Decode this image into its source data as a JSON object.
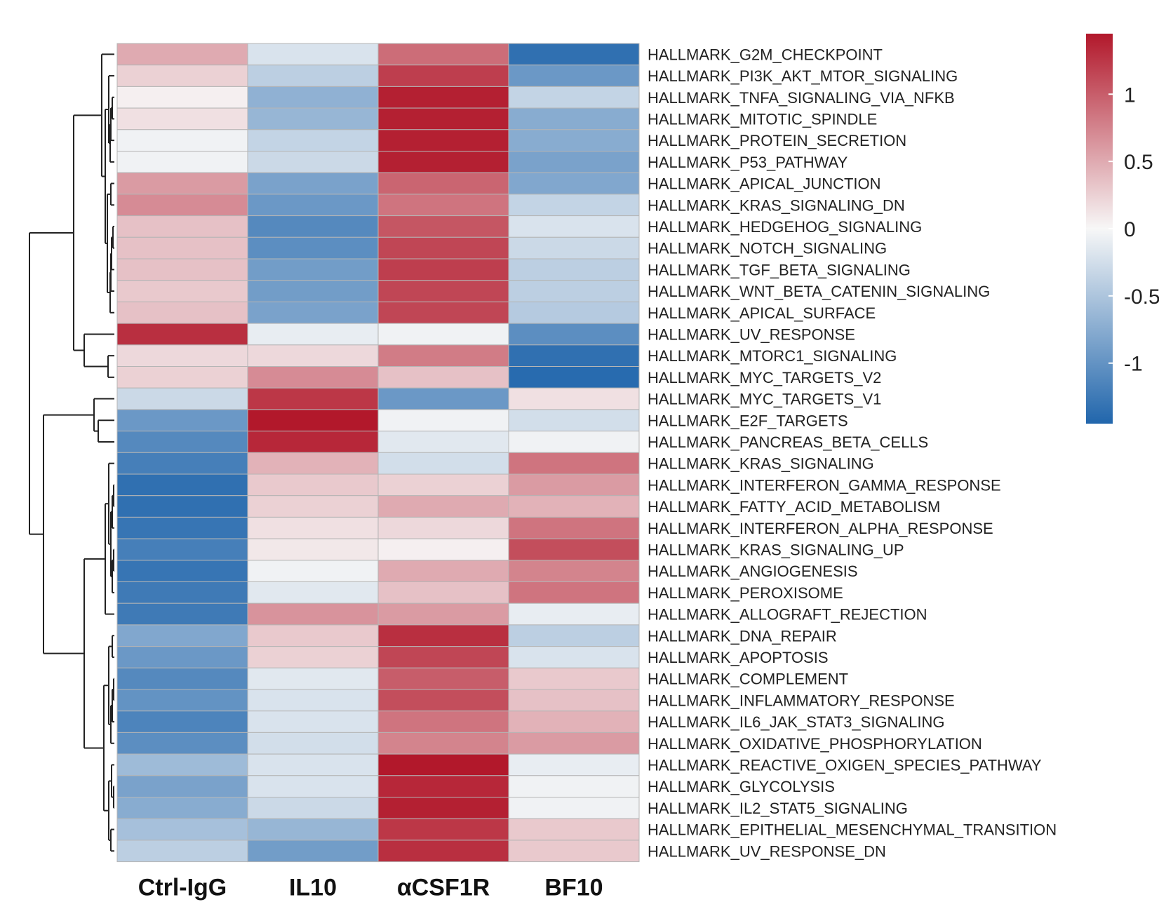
{
  "chart_data": {
    "type": "heatmap",
    "title": "",
    "columns": [
      "Ctrl-IgG",
      "IL10",
      "αCSF1R",
      "BF10"
    ],
    "rows": [
      {
        "name": "HALLMARK_G2M_CHECKPOINT",
        "values": [
          0.5,
          -0.2,
          0.9,
          -1.35
        ]
      },
      {
        "name": "HALLMARK_PI3K_AKT_MTOR_SIGNALING",
        "values": [
          0.25,
          -0.4,
          1.2,
          -0.95
        ]
      },
      {
        "name": "HALLMARK_TNFA_SIGNALING_VIA_NFKB",
        "values": [
          0.05,
          -0.7,
          1.4,
          -0.35
        ]
      },
      {
        "name": "HALLMARK_MITOTIC_SPINDLE",
        "values": [
          0.15,
          -0.65,
          1.4,
          -0.75
        ]
      },
      {
        "name": "HALLMARK_PROTEIN_SECRETION",
        "values": [
          -0.05,
          -0.35,
          1.4,
          -0.75
        ]
      },
      {
        "name": "HALLMARK_P53_PATHWAY",
        "values": [
          -0.05,
          -0.3,
          1.4,
          -0.85
        ]
      },
      {
        "name": "HALLMARK_APICAL_JUNCTION",
        "values": [
          0.6,
          -0.85,
          0.95,
          -0.8
        ]
      },
      {
        "name": "HALLMARK_KRAS_SIGNALING_DN",
        "values": [
          0.7,
          -0.95,
          0.85,
          -0.35
        ]
      },
      {
        "name": "HALLMARK_HEDGEHOG_SIGNALING",
        "values": [
          0.35,
          -1.1,
          1.05,
          -0.2
        ]
      },
      {
        "name": "HALLMARK_NOTCH_SIGNALING",
        "values": [
          0.35,
          -1.05,
          1.15,
          -0.3
        ]
      },
      {
        "name": "HALLMARK_TGF_BETA_SIGNALING",
        "values": [
          0.35,
          -0.9,
          1.2,
          -0.4
        ]
      },
      {
        "name": "HALLMARK_WNT_BETA_CATENIN_SIGNALING",
        "values": [
          0.3,
          -0.9,
          1.15,
          -0.4
        ]
      },
      {
        "name": "HALLMARK_APICAL_SURFACE",
        "values": [
          0.35,
          -0.85,
          1.15,
          -0.45
        ]
      },
      {
        "name": "HALLMARK_UV_RESPONSE",
        "values": [
          1.3,
          -0.1,
          -0.05,
          -1.05
        ]
      },
      {
        "name": "HALLMARK_MTORC1_SIGNALING",
        "values": [
          0.2,
          0.2,
          0.8,
          -1.35
        ]
      },
      {
        "name": "HALLMARK_MYC_TARGETS_V2",
        "values": [
          0.25,
          0.7,
          0.35,
          -1.4
        ]
      },
      {
        "name": "HALLMARK_MYC_TARGETS_V1",
        "values": [
          -0.3,
          1.25,
          -0.95,
          0.15
        ]
      },
      {
        "name": "HALLMARK_E2F_TARGETS",
        "values": [
          -0.95,
          1.45,
          -0.05,
          -0.25
        ]
      },
      {
        "name": "HALLMARK_PANCREAS_BETA_CELLS",
        "values": [
          -1.1,
          1.35,
          -0.15,
          -0.05
        ]
      },
      {
        "name": "HALLMARK_KRAS_SIGNALING",
        "values": [
          -1.2,
          0.45,
          -0.25,
          0.85
        ]
      },
      {
        "name": "HALLMARK_INTERFERON_GAMMA_RESPONSE",
        "values": [
          -1.35,
          0.3,
          0.25,
          0.6
        ]
      },
      {
        "name": "HALLMARK_FATTY_ACID_METABOLISM",
        "values": [
          -1.35,
          0.25,
          0.5,
          0.45
        ]
      },
      {
        "name": "HALLMARK_INTERFERON_ALPHA_RESPONSE",
        "values": [
          -1.3,
          0.15,
          0.2,
          0.85
        ]
      },
      {
        "name": "HALLMARK_KRAS_SIGNALING_UP",
        "values": [
          -1.2,
          0.1,
          0.05,
          1.1
        ]
      },
      {
        "name": "HALLMARK_ANGIOGENESIS",
        "values": [
          -1.3,
          -0.05,
          0.5,
          0.75
        ]
      },
      {
        "name": "HALLMARK_PEROXISOME",
        "values": [
          -1.25,
          -0.15,
          0.35,
          0.85
        ]
      },
      {
        "name": "HALLMARK_ALLOGRAFT_REJECTION",
        "values": [
          -1.25,
          0.65,
          0.6,
          -0.1
        ]
      },
      {
        "name": "HALLMARK_DNA_REPAIR",
        "values": [
          -0.8,
          0.3,
          1.3,
          -0.4
        ]
      },
      {
        "name": "HALLMARK_APOPTOSIS",
        "values": [
          -0.95,
          0.25,
          1.15,
          -0.2
        ]
      },
      {
        "name": "HALLMARK_COMPLEMENT",
        "values": [
          -1.1,
          -0.15,
          1.0,
          0.3
        ]
      },
      {
        "name": "HALLMARK_INFLAMMATORY_RESPONSE",
        "values": [
          -1.0,
          -0.2,
          1.1,
          0.35
        ]
      },
      {
        "name": "HALLMARK_IL6_JAK_STAT3_SIGNALING",
        "values": [
          -1.15,
          -0.2,
          0.85,
          0.45
        ]
      },
      {
        "name": "HALLMARK_OXIDATIVE_PHOSPHORYLATION",
        "values": [
          -1.05,
          -0.25,
          0.75,
          0.6
        ]
      },
      {
        "name": "HALLMARK_REACTIVE_OXIGEN_SPECIES_PATHWAY",
        "values": [
          -0.6,
          -0.2,
          1.45,
          -0.1
        ]
      },
      {
        "name": "HALLMARK_GLYCOLYSIS",
        "values": [
          -0.85,
          -0.2,
          1.35,
          -0.05
        ]
      },
      {
        "name": "HALLMARK_IL2_STAT5_SIGNALING",
        "values": [
          -0.75,
          -0.3,
          1.4,
          -0.05
        ]
      },
      {
        "name": "HALLMARK_EPITHELIAL_MESENCHYMAL_TRANSITION",
        "values": [
          -0.55,
          -0.65,
          1.25,
          0.3
        ]
      },
      {
        "name": "HALLMARK_UV_RESPONSE_DN",
        "values": [
          -0.4,
          -0.9,
          1.3,
          0.3
        ]
      }
    ],
    "color_scale": {
      "min": -1.45,
      "max": 1.45,
      "low_color": "#2166ac",
      "mid_color": "#f7f7f7",
      "high_color": "#b2182b",
      "ticks": [
        1,
        0.5,
        0,
        -0.5,
        -1
      ],
      "tick_labels": [
        "1",
        "0.5",
        "0",
        "-0.5",
        "-1"
      ]
    },
    "dendrogram": "rows",
    "legend": "right"
  }
}
